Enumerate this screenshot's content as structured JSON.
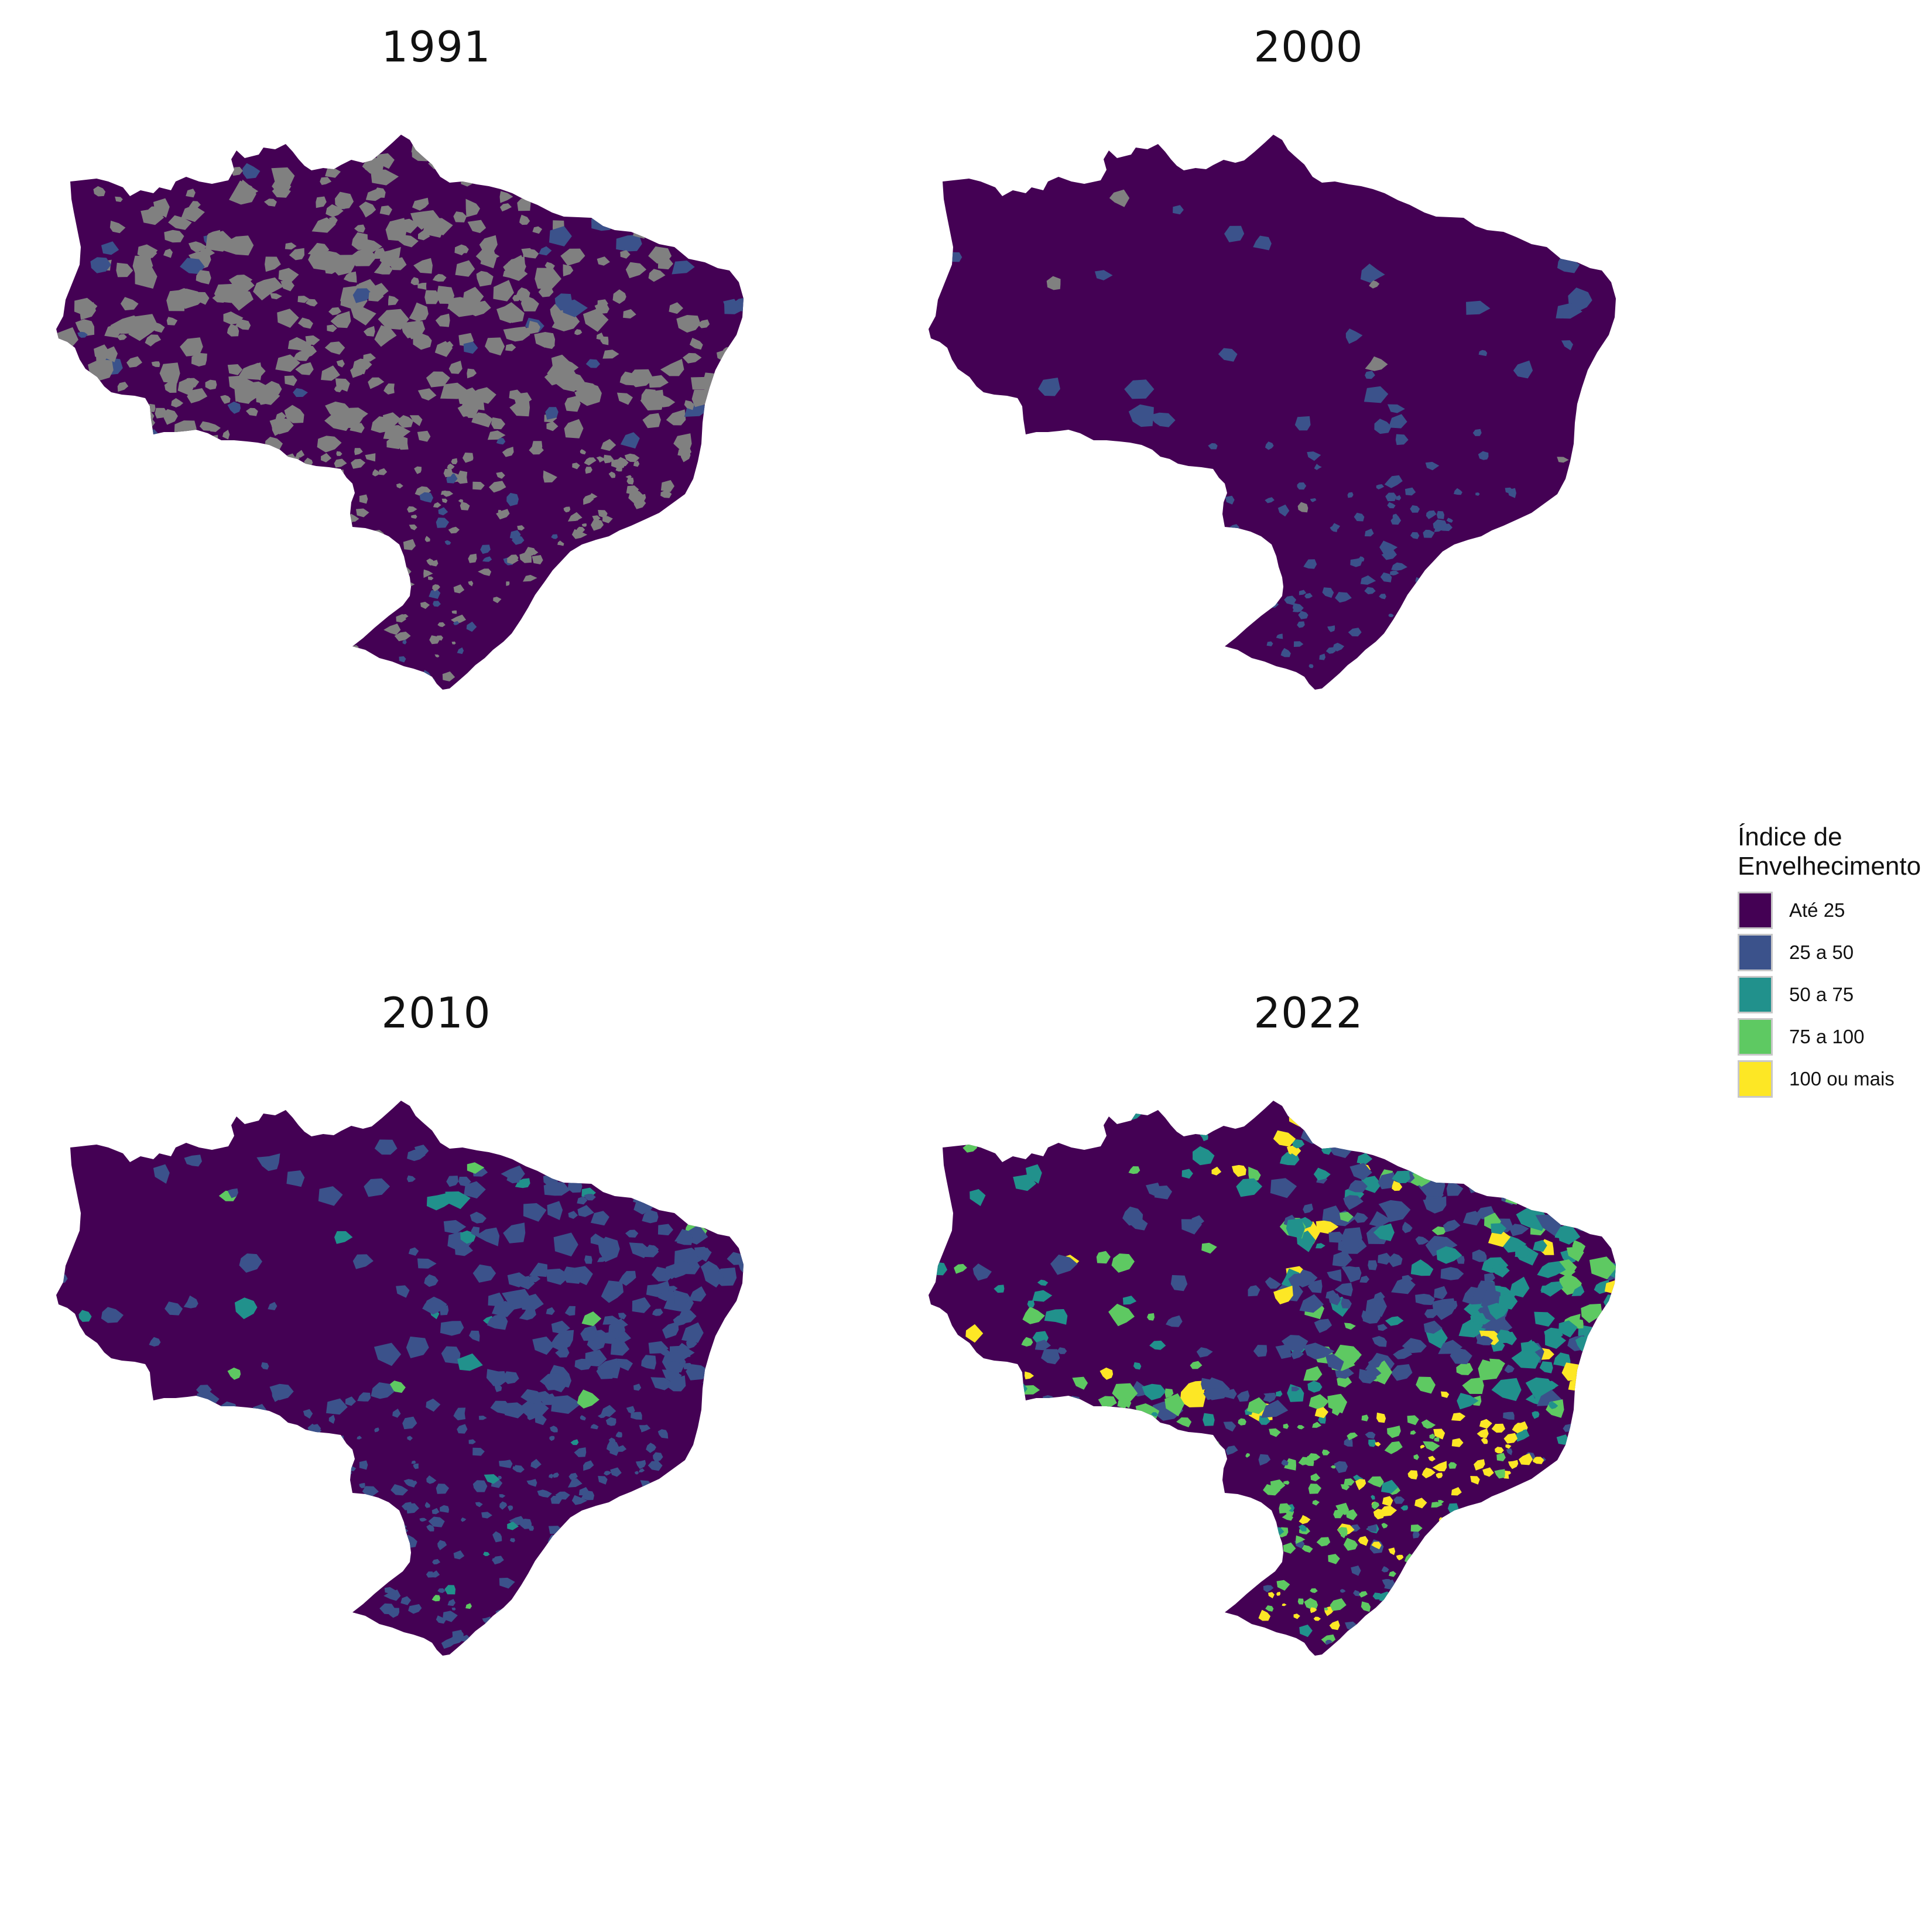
{
  "panels": [
    {
      "title": "1991",
      "unit_colors": [
        "#440154",
        "#808080",
        "#3b528b"
      ],
      "mix": [
        0.72,
        0.22,
        0.06
      ]
    },
    {
      "title": "2000",
      "unit_colors": [
        "#440154",
        "#808080",
        "#3b528b"
      ],
      "mix": [
        0.86,
        0.03,
        0.11
      ]
    },
    {
      "title": "2010",
      "unit_colors": [
        "#440154",
        "#3b528b",
        "#21918c",
        "#5ec962"
      ],
      "mix": [
        0.55,
        0.38,
        0.05,
        0.02
      ]
    },
    {
      "title": "2022",
      "unit_colors": [
        "#440154",
        "#3b528b",
        "#21918c",
        "#5ec962",
        "#fde725"
      ],
      "mix": [
        0.16,
        0.27,
        0.27,
        0.17,
        0.13
      ]
    }
  ],
  "legend": {
    "title_line1": "Índice de",
    "title_line2": "Envelhecimento",
    "items": [
      {
        "label": "Até 25",
        "color": "#440154"
      },
      {
        "label": "25 a 50",
        "color": "#3b528b"
      },
      {
        "label": "50 a 75",
        "color": "#21918c"
      },
      {
        "label": "75 a 100",
        "color": "#5ec962"
      },
      {
        "label": "100 ou mais",
        "color": "#fde725"
      }
    ]
  },
  "colors": {
    "no_data": "#808080",
    "background": "#ffffff"
  }
}
